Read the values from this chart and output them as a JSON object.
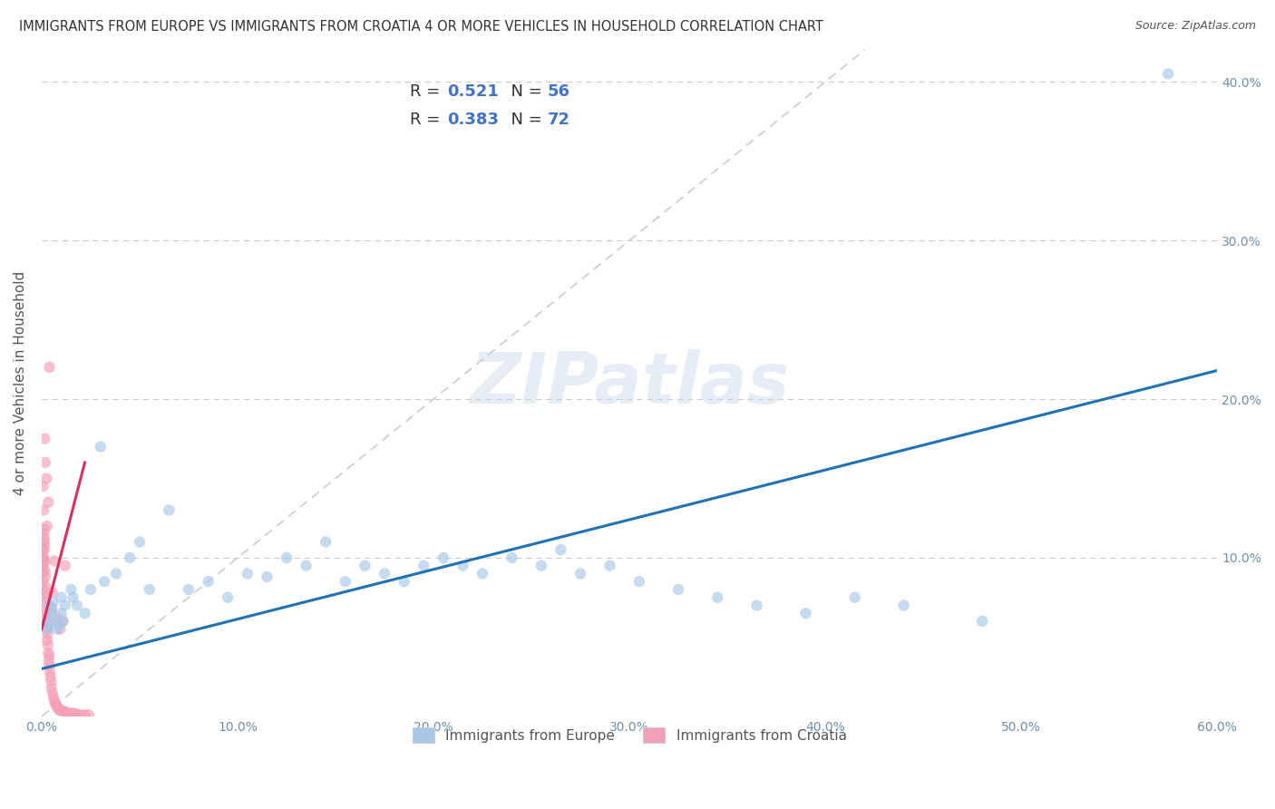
{
  "title": "IMMIGRANTS FROM EUROPE VS IMMIGRANTS FROM CROATIA 4 OR MORE VEHICLES IN HOUSEHOLD CORRELATION CHART",
  "source": "Source: ZipAtlas.com",
  "ylabel": "4 or more Vehicles in Household",
  "legend_label_blue": "Immigrants from Europe",
  "legend_label_pink": "Immigrants from Croatia",
  "R_blue": 0.521,
  "N_blue": 56,
  "R_pink": 0.383,
  "N_pink": 72,
  "color_blue": "#a8c8e8",
  "color_pink": "#f4a0b8",
  "color_blue_line": "#2171b5",
  "color_pink_line": "#d63060",
  "color_dashed": "#cccccc",
  "xlim": [
    0.0,
    0.6
  ],
  "ylim": [
    0.0,
    0.42
  ],
  "xticks": [
    0.0,
    0.1,
    0.2,
    0.3,
    0.4,
    0.5,
    0.6
  ],
  "yticks": [
    0.0,
    0.1,
    0.2,
    0.3,
    0.4
  ],
  "xtick_labels": [
    "0.0%",
    "10.0%",
    "20.0%",
    "30.0%",
    "40.0%",
    "50.0%",
    "60.0%"
  ],
  "ytick_labels_right": [
    "",
    "10.0%",
    "20.0%",
    "30.0%",
    "40.0%"
  ],
  "watermark": "ZIPatlas",
  "blue_x": [
    0.002,
    0.003,
    0.004,
    0.004,
    0.005,
    0.005,
    0.006,
    0.007,
    0.008,
    0.009,
    0.01,
    0.01,
    0.011,
    0.012,
    0.015,
    0.016,
    0.018,
    0.022,
    0.025,
    0.03,
    0.032,
    0.038,
    0.045,
    0.05,
    0.055,
    0.065,
    0.075,
    0.085,
    0.095,
    0.105,
    0.115,
    0.125,
    0.135,
    0.145,
    0.155,
    0.165,
    0.175,
    0.185,
    0.195,
    0.205,
    0.215,
    0.225,
    0.24,
    0.255,
    0.265,
    0.275,
    0.29,
    0.305,
    0.325,
    0.345,
    0.365,
    0.39,
    0.415,
    0.44,
    0.48,
    0.575
  ],
  "blue_y": [
    0.06,
    0.055,
    0.058,
    0.07,
    0.065,
    0.068,
    0.072,
    0.06,
    0.055,
    0.058,
    0.075,
    0.065,
    0.06,
    0.07,
    0.08,
    0.075,
    0.07,
    0.065,
    0.08,
    0.17,
    0.085,
    0.09,
    0.1,
    0.11,
    0.08,
    0.13,
    0.08,
    0.085,
    0.075,
    0.09,
    0.088,
    0.1,
    0.095,
    0.11,
    0.085,
    0.095,
    0.09,
    0.085,
    0.095,
    0.1,
    0.095,
    0.09,
    0.1,
    0.095,
    0.105,
    0.09,
    0.095,
    0.085,
    0.08,
    0.075,
    0.07,
    0.065,
    0.075,
    0.07,
    0.06,
    0.405
  ],
  "pink_x": [
    0.0004,
    0.0005,
    0.0006,
    0.0006,
    0.0007,
    0.0008,
    0.0008,
    0.0009,
    0.001,
    0.001,
    0.0011,
    0.0012,
    0.0013,
    0.0014,
    0.0015,
    0.0016,
    0.0017,
    0.0018,
    0.0019,
    0.002,
    0.0021,
    0.0022,
    0.0023,
    0.0024,
    0.0025,
    0.0026,
    0.0027,
    0.0028,
    0.003,
    0.0032,
    0.0034,
    0.0036,
    0.0038,
    0.004,
    0.0042,
    0.0045,
    0.0048,
    0.005,
    0.0055,
    0.006,
    0.0065,
    0.007,
    0.0075,
    0.008,
    0.0085,
    0.009,
    0.01,
    0.011,
    0.012,
    0.013,
    0.014,
    0.0155,
    0.017,
    0.0185,
    0.02,
    0.022,
    0.024,
    0.012,
    0.0065,
    0.004,
    0.008,
    0.0018,
    0.0025,
    0.0035,
    0.0015,
    0.0055,
    0.0028,
    0.001,
    0.0007,
    0.005,
    0.0095,
    0.0105
  ],
  "pink_y": [
    0.08,
    0.09,
    0.095,
    0.085,
    0.1,
    0.092,
    0.105,
    0.098,
    0.11,
    0.1,
    0.115,
    0.105,
    0.112,
    0.118,
    0.108,
    0.098,
    0.092,
    0.088,
    0.082,
    0.078,
    0.072,
    0.068,
    0.075,
    0.065,
    0.058,
    0.062,
    0.055,
    0.048,
    0.052,
    0.045,
    0.04,
    0.035,
    0.038,
    0.032,
    0.028,
    0.025,
    0.022,
    0.018,
    0.015,
    0.012,
    0.01,
    0.008,
    0.007,
    0.006,
    0.005,
    0.004,
    0.004,
    0.003,
    0.003,
    0.002,
    0.002,
    0.002,
    0.002,
    0.001,
    0.001,
    0.001,
    0.001,
    0.095,
    0.098,
    0.22,
    0.062,
    0.16,
    0.15,
    0.135,
    0.175,
    0.078,
    0.12,
    0.13,
    0.145,
    0.068,
    0.055,
    0.06
  ],
  "blue_line_x": [
    0.0,
    0.6
  ],
  "blue_line_y": [
    0.03,
    0.218
  ],
  "pink_line_x": [
    0.0,
    0.022
  ],
  "pink_line_y": [
    0.055,
    0.16
  ]
}
